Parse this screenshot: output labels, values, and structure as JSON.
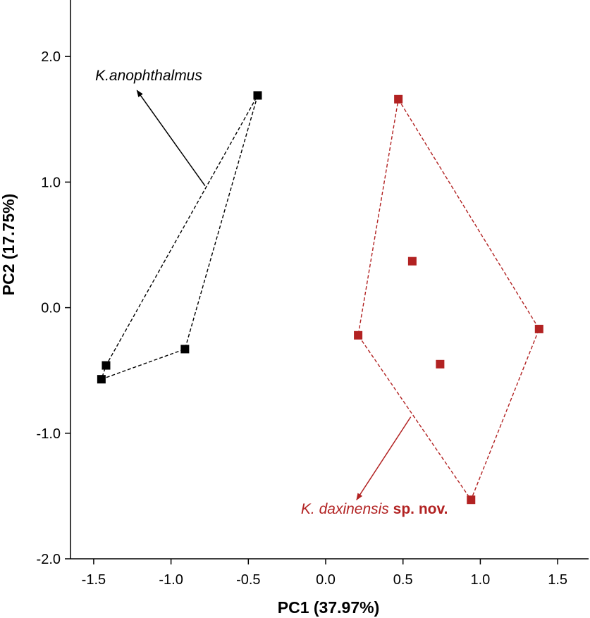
{
  "chart_data": {
    "type": "scatter",
    "title": "",
    "xlabel": "PC1 (37.97%)",
    "ylabel": "PC2 (17.75%)",
    "xlim": [
      -1.65,
      1.7
    ],
    "ylim": [
      -2.0,
      2.45
    ],
    "xticks": [
      -1.5,
      -1.0,
      -0.5,
      0.0,
      0.5,
      1.0,
      1.5
    ],
    "xtick_labels": [
      "-1.5",
      "-1.0",
      "-0.5",
      "0.0",
      "0.5",
      "1.0",
      "1.5"
    ],
    "yticks": [
      -2.0,
      -1.0,
      0.0,
      1.0,
      2.0
    ],
    "ytick_labels": [
      "-2.0",
      "-1.0",
      "0.0",
      "1.0",
      "2.0"
    ],
    "grid": false,
    "marker": "square",
    "series": [
      {
        "name": "K.anophthalmus",
        "color": "#000000",
        "points": [
          {
            "x": -0.44,
            "y": 1.69
          },
          {
            "x": -0.91,
            "y": -0.33
          },
          {
            "x": -1.42,
            "y": -0.46
          },
          {
            "x": -1.45,
            "y": -0.57
          }
        ],
        "hull_order": [
          0,
          1,
          3,
          2
        ]
      },
      {
        "name": "K. daxinensis sp. nov.",
        "color": "#b22222",
        "points": [
          {
            "x": 0.47,
            "y": 1.66
          },
          {
            "x": 0.56,
            "y": 0.37
          },
          {
            "x": 0.21,
            "y": -0.22
          },
          {
            "x": 0.74,
            "y": -0.45
          },
          {
            "x": 1.38,
            "y": -0.17
          },
          {
            "x": 0.94,
            "y": -1.53
          }
        ],
        "hull_order": [
          0,
          4,
          5,
          2
        ]
      }
    ],
    "annotations": [
      {
        "series": 0,
        "text_italic": "K.anophthalmus",
        "text_bold": "",
        "color": "#000000",
        "text_at": [
          -1.49,
          1.81
        ],
        "arrow_from": [
          -0.78,
          0.97
        ],
        "arrow_to": [
          -1.22,
          1.73
        ]
      },
      {
        "series": 1,
        "text_italic": "K. daxinensis",
        "text_bold": "sp. nov.",
        "color": "#b22222",
        "text_at": [
          -0.16,
          -1.64
        ],
        "arrow_from": [
          0.55,
          -0.87
        ],
        "arrow_to": [
          0.2,
          -1.53
        ]
      }
    ]
  }
}
